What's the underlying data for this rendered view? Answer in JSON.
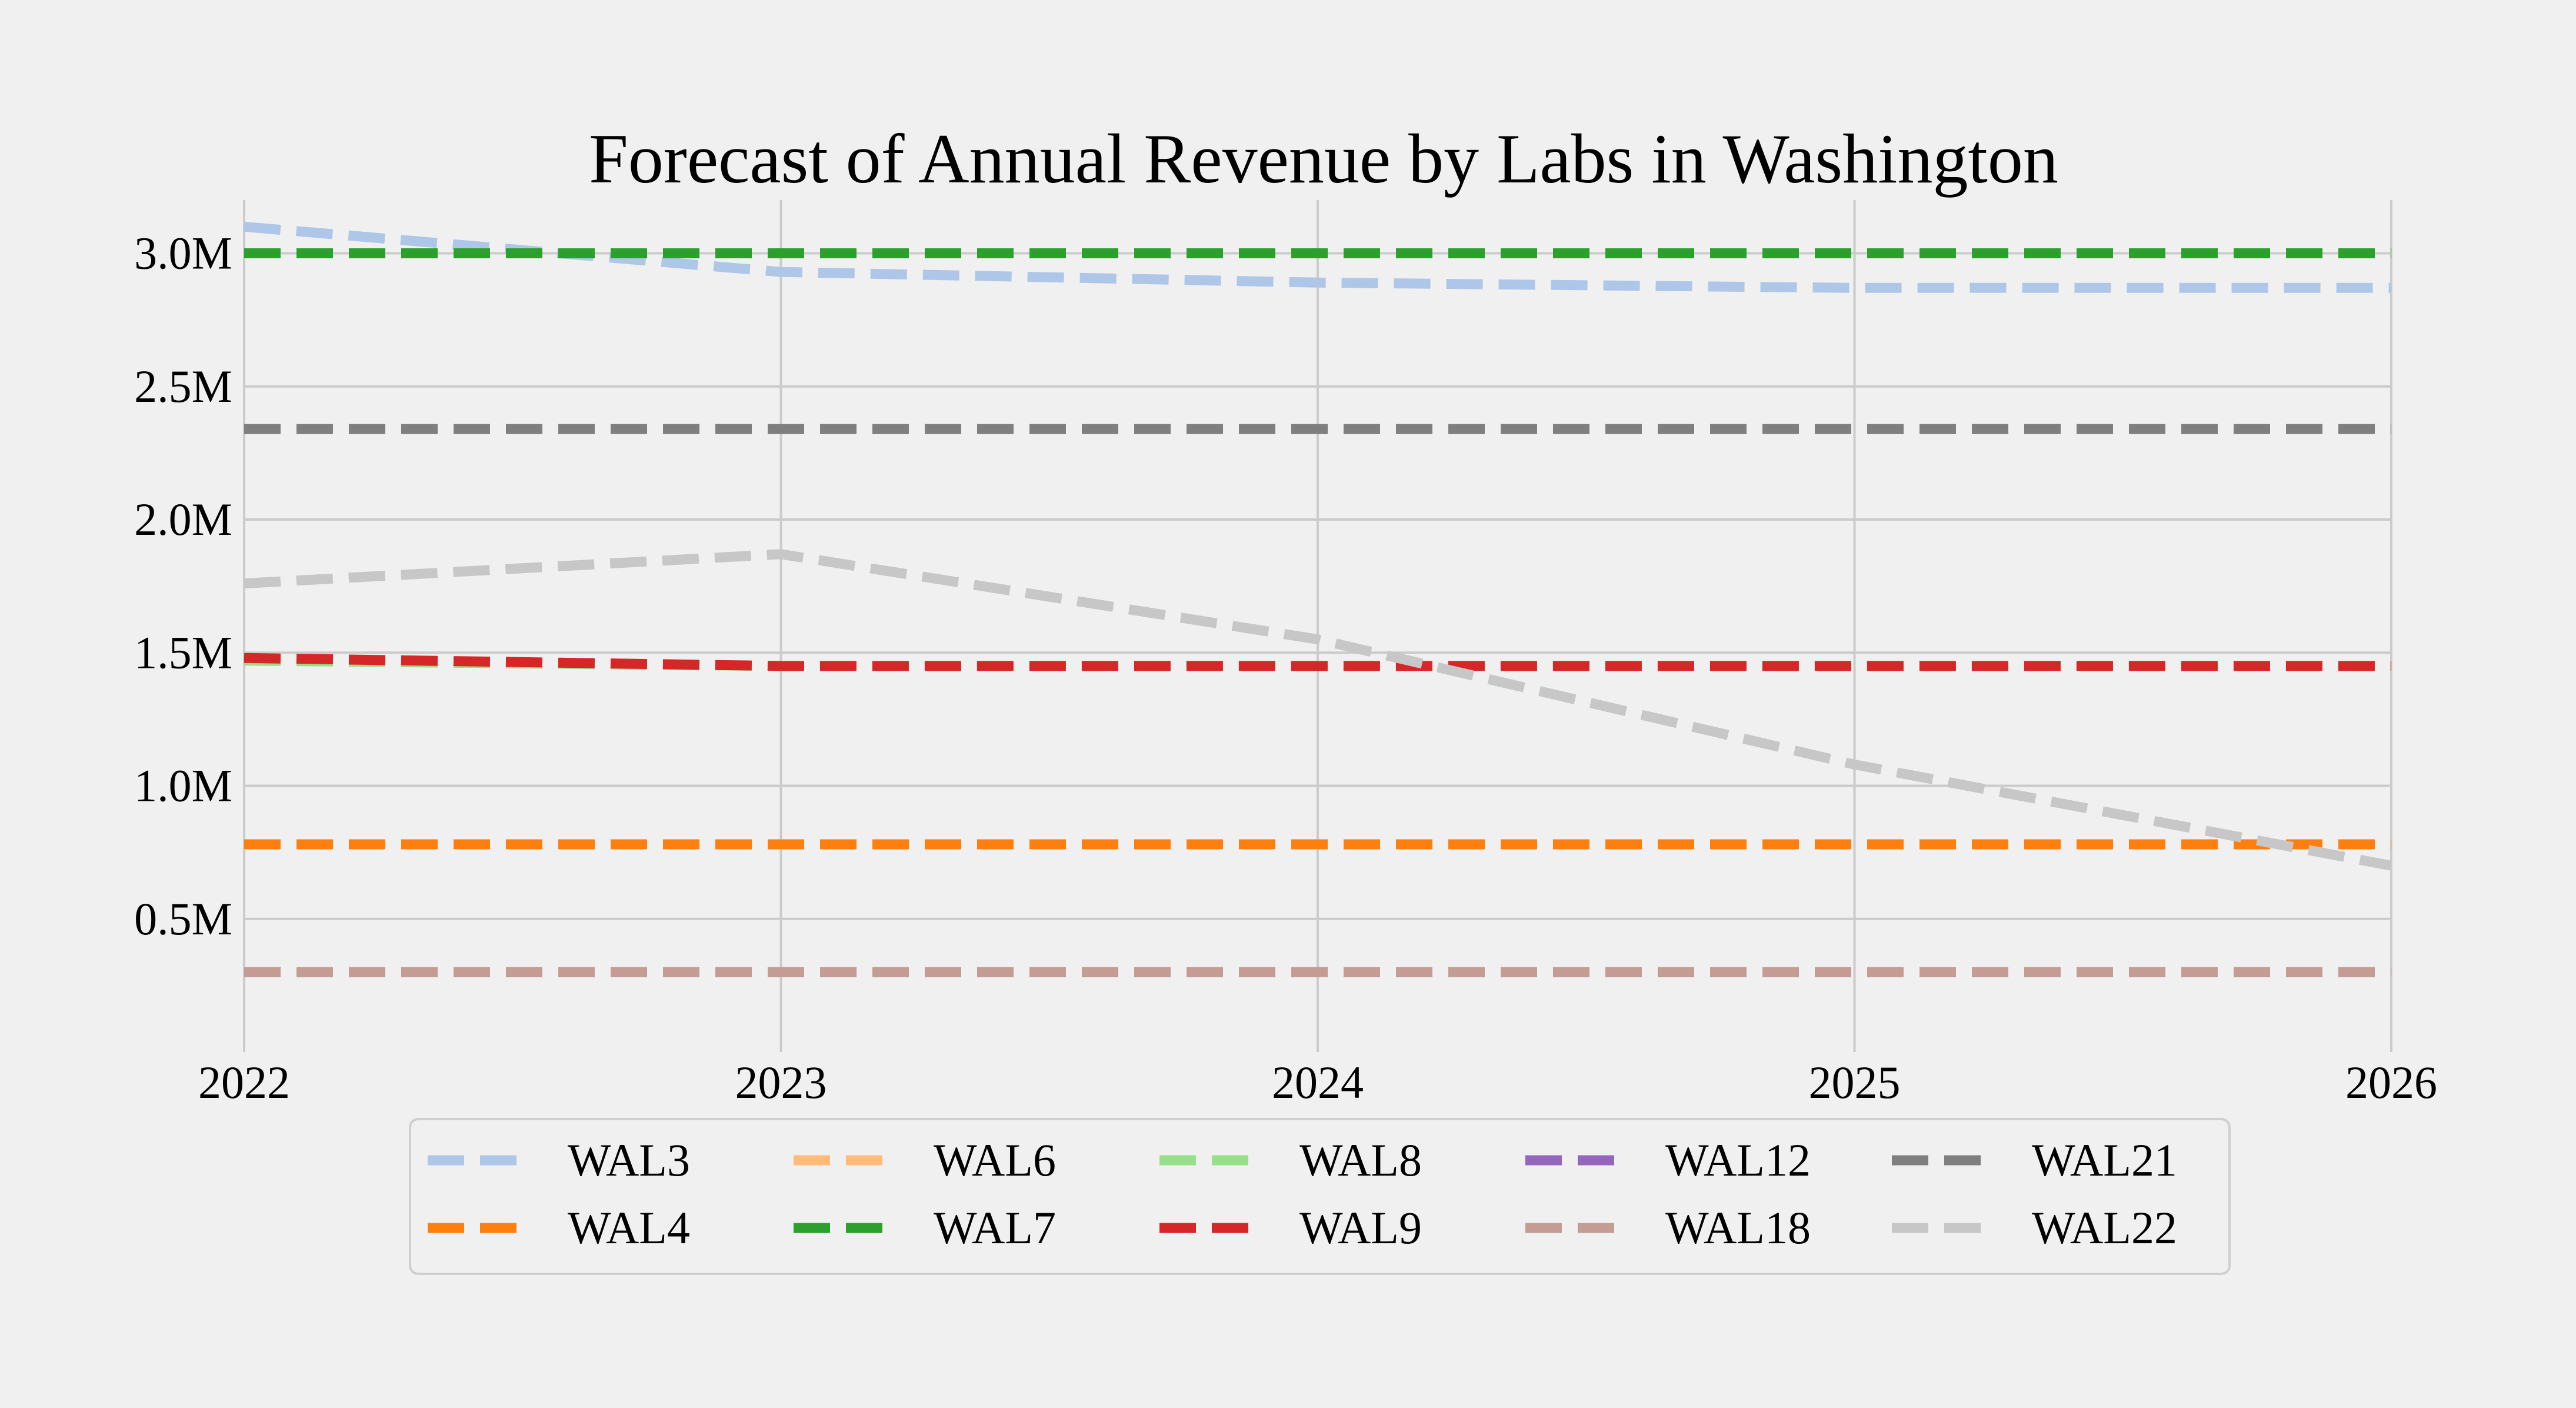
{
  "chart_data": {
    "type": "line",
    "title": "Forecast of Annual Revenue by Labs in Washington",
    "xlabel": "",
    "ylabel": "",
    "x": [
      2022,
      2023,
      2024,
      2025,
      2026
    ],
    "x_tick_labels": [
      "2022",
      "2023",
      "2024",
      "2025",
      "2026"
    ],
    "xlim": [
      2022,
      2026
    ],
    "ylim": [
      0,
      3.2
    ],
    "y_ticks": [
      0.5,
      1.0,
      1.5,
      2.0,
      2.5,
      3.0
    ],
    "y_tick_labels": [
      "0.5M",
      "1.0M",
      "1.5M",
      "2.0M",
      "2.5M",
      "3.0M"
    ],
    "y_unit": "millions",
    "grid": true,
    "line_style": "dashed",
    "legend_position": "bottom-center",
    "legend_columns": 5,
    "series": [
      {
        "name": "WAL3",
        "color": "#aec7e8",
        "values": [
          3.1,
          2.93,
          2.89,
          2.87,
          2.87
        ]
      },
      {
        "name": "WAL4",
        "color": "#ff7f0e",
        "values": [
          0.78,
          0.78,
          0.78,
          0.78,
          0.78
        ]
      },
      {
        "name": "WAL6",
        "color": "#ffbb78",
        "values": [
          3.0,
          3.0,
          3.0,
          3.0,
          3.0
        ]
      },
      {
        "name": "WAL7",
        "color": "#2ca02c",
        "values": [
          3.0,
          3.0,
          3.0,
          3.0,
          3.0
        ]
      },
      {
        "name": "WAL8",
        "color": "#98df8a",
        "values": [
          1.47,
          1.45,
          1.45,
          1.45,
          1.45
        ]
      },
      {
        "name": "WAL9",
        "color": "#d62728",
        "values": [
          1.48,
          1.45,
          1.45,
          1.45,
          1.45
        ]
      },
      {
        "name": "WAL12",
        "color": "#9467bd",
        "values": [
          0.3,
          0.3,
          0.3,
          0.3,
          0.3
        ]
      },
      {
        "name": "WAL18",
        "color": "#c49c94",
        "values": [
          0.3,
          0.3,
          0.3,
          0.3,
          0.3
        ]
      },
      {
        "name": "WAL21",
        "color": "#7f7f7f",
        "values": [
          2.34,
          2.34,
          2.34,
          2.34,
          2.34
        ]
      },
      {
        "name": "WAL22",
        "color": "#c7c7c7",
        "values": [
          1.76,
          1.87,
          1.55,
          1.08,
          0.7
        ]
      }
    ]
  }
}
